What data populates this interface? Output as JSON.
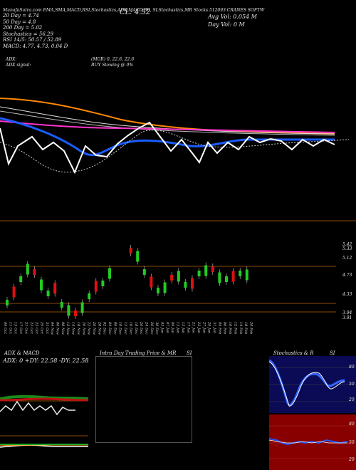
{
  "header": {
    "line1": "MunafaSutra.com EMA,SMA,MACD,RSI,Stochastics,ADX,MACD,BB,  SLStochastics,MR  Stocks  512093  CRANES SOFTW",
    "left_info": [
      "20 Day = 4.74",
      "50 Day = 4.8",
      "200 Day = 5.02",
      "Stochastics = 56.29",
      "RSI 14/5: 50.57 / 52.89",
      "MACD: 4.77, 4.73, 0.04 D"
    ],
    "close_label": "CL: 4.52",
    "avg_vol": "Avg Vol: 0.054  M",
    "day_vol": "Day Vol: 0  M",
    "adx_label": "ADX:",
    "adx_value": "(MGR) 0, 22.6, 22.6",
    "adx_signal_label": "ADX  signal:",
    "adx_signal_value": "BUY Slowing @ 0%"
  },
  "price_axis": [
    "5.42",
    "5.33",
    "5.12",
    "4.73",
    "4.33",
    "3.94",
    "3.91"
  ],
  "date_labels": [
    "09 Oct",
    "11 Oct",
    "15 Oct",
    "17 Oct",
    "21 Oct",
    "23 Oct",
    "25 Oct",
    "29 Oct",
    "31 Oct",
    "04 Nov",
    "06 Nov",
    "08 Nov",
    "12 Nov",
    "14 Nov",
    "18 Nov",
    "20 Nov",
    "22 Nov",
    "26 Nov",
    "28 Nov",
    "02 Dec",
    "04 Dec",
    "06 Dec",
    "10 Dec",
    "12 Dec",
    "16 Dec",
    "18 Dec",
    "20 Dec",
    "24 Dec",
    "26 Dec",
    "30 Dec",
    "03 Jan",
    "07 Jan",
    "09 Jan",
    "13 Jan",
    "15 Jan",
    "17 Jan",
    "21 Jan",
    "23 Jan",
    "27 Jan",
    "29 Jan",
    "31 Jan",
    "04 Feb",
    "06 Feb",
    "10 Feb",
    "12 Feb",
    "14 Feb",
    "18 Feb",
    "20 Feb",
    "24 Feb",
    "26 Feb",
    "28 Feb",
    "04 Mar",
    "06 Mar",
    "10 Mar",
    "12 Mar",
    "14 Mar",
    "18 Mar",
    "20 Mar",
    "24 Mar",
    "26 Mar",
    "28 Mar",
    "01 Apr",
    "03 Apr",
    "07 Apr",
    "09 Apr",
    "11 Apr",
    "15 Apr",
    "17 Apr",
    "21 Apr",
    "23 Apr",
    "25 Apr",
    "29 Apr",
    "01 May",
    "05 May",
    "07 May",
    "09 May",
    "13 May",
    "15 May",
    "19 May",
    "21 May",
    "23 May",
    "27 May",
    "29 May",
    "02 Jun",
    "04 Jun",
    "06 Jun",
    "10 Jun",
    "12 Jun",
    "16 Jun",
    "18 Jun",
    "20 Jun",
    "24 Jun",
    "26 Jun",
    "30 Jun"
  ],
  "panels": {
    "adx_title": "ADX  & MACD",
    "adx_stats": "ADX: 0  +DY: 22.58  -DY: 22.58",
    "intraday_title": "Intra  Day Trading Price  & MR",
    "intraday_si": "SI",
    "stoch_title": "Stochastics & R",
    "stoch_si": "SI",
    "stoch_axis": [
      "80",
      "50",
      "20"
    ],
    "rsi_axis": [
      "80",
      "50",
      "20"
    ]
  },
  "colors": {
    "bull": "#22cc22",
    "bear": "#dd1111",
    "ema_blue": "#1a5cff",
    "orange": "#ff8800",
    "magenta": "#ff33cc",
    "rsi_panel": "#880000",
    "stoch_panel": "#0a0a55"
  }
}
